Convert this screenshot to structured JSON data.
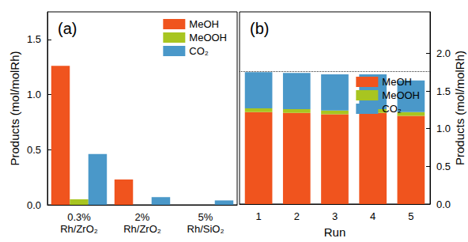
{
  "chart_data": [
    {
      "type": "bar",
      "title": "(a)",
      "y_label": "Products (mol/molRh)",
      "categories": [
        "0.3%\nRh/ZrO₂",
        "2%\nRh/ZrO₂",
        "5%\nRh/SiO₂"
      ],
      "series": [
        {
          "name": "MeOH",
          "color": "#f0541e",
          "values": [
            1.26,
            0.23,
            0
          ]
        },
        {
          "name": "MeOOH",
          "color": "#a8c520",
          "values": [
            0.05,
            0,
            0
          ]
        },
        {
          "name": "CO₂",
          "color": "#4a98c9",
          "values": [
            0.46,
            0.07,
            0.04
          ]
        }
      ],
      "ylim": [
        0,
        1.75
      ],
      "yticks": [
        {
          "value": 0,
          "label": "0.0"
        },
        {
          "value": 0.5,
          "label": "0.5"
        },
        {
          "value": 1,
          "label": "1.0"
        },
        {
          "value": 1.5,
          "label": "1.5"
        }
      ],
      "grid": false,
      "legend": "upper right"
    },
    {
      "type": "bar",
      "title": "(b)",
      "x_label": "Run",
      "y_label": "Products (mol/molRh)",
      "categories": [
        "1",
        "2",
        "3",
        "4",
        "5"
      ],
      "series": [
        {
          "name": "MeOH",
          "color": "#f0541e",
          "values": [
            1.22,
            1.21,
            1.19,
            1.21,
            1.17
          ]
        },
        {
          "name": "MeOOH",
          "color": "#a8c520",
          "values": [
            0.05,
            0.05,
            0.05,
            0.05,
            0.05
          ]
        },
        {
          "name": "CO₂",
          "color": "#4a98c9",
          "values": [
            0.48,
            0.48,
            0.48,
            0.46,
            0.42
          ]
        }
      ],
      "reference_line": 1.76,
      "ylim": [
        0,
        2.55
      ],
      "yticks": [
        {
          "value": 0,
          "label": "0.0"
        },
        {
          "value": 0.5,
          "label": "0.5"
        },
        {
          "value": 1,
          "label": "1.0"
        },
        {
          "value": 1.5,
          "label": "1.5"
        },
        {
          "value": 2,
          "label": "2.0"
        }
      ],
      "grid": false,
      "stacked": true,
      "legend": "right"
    }
  ]
}
